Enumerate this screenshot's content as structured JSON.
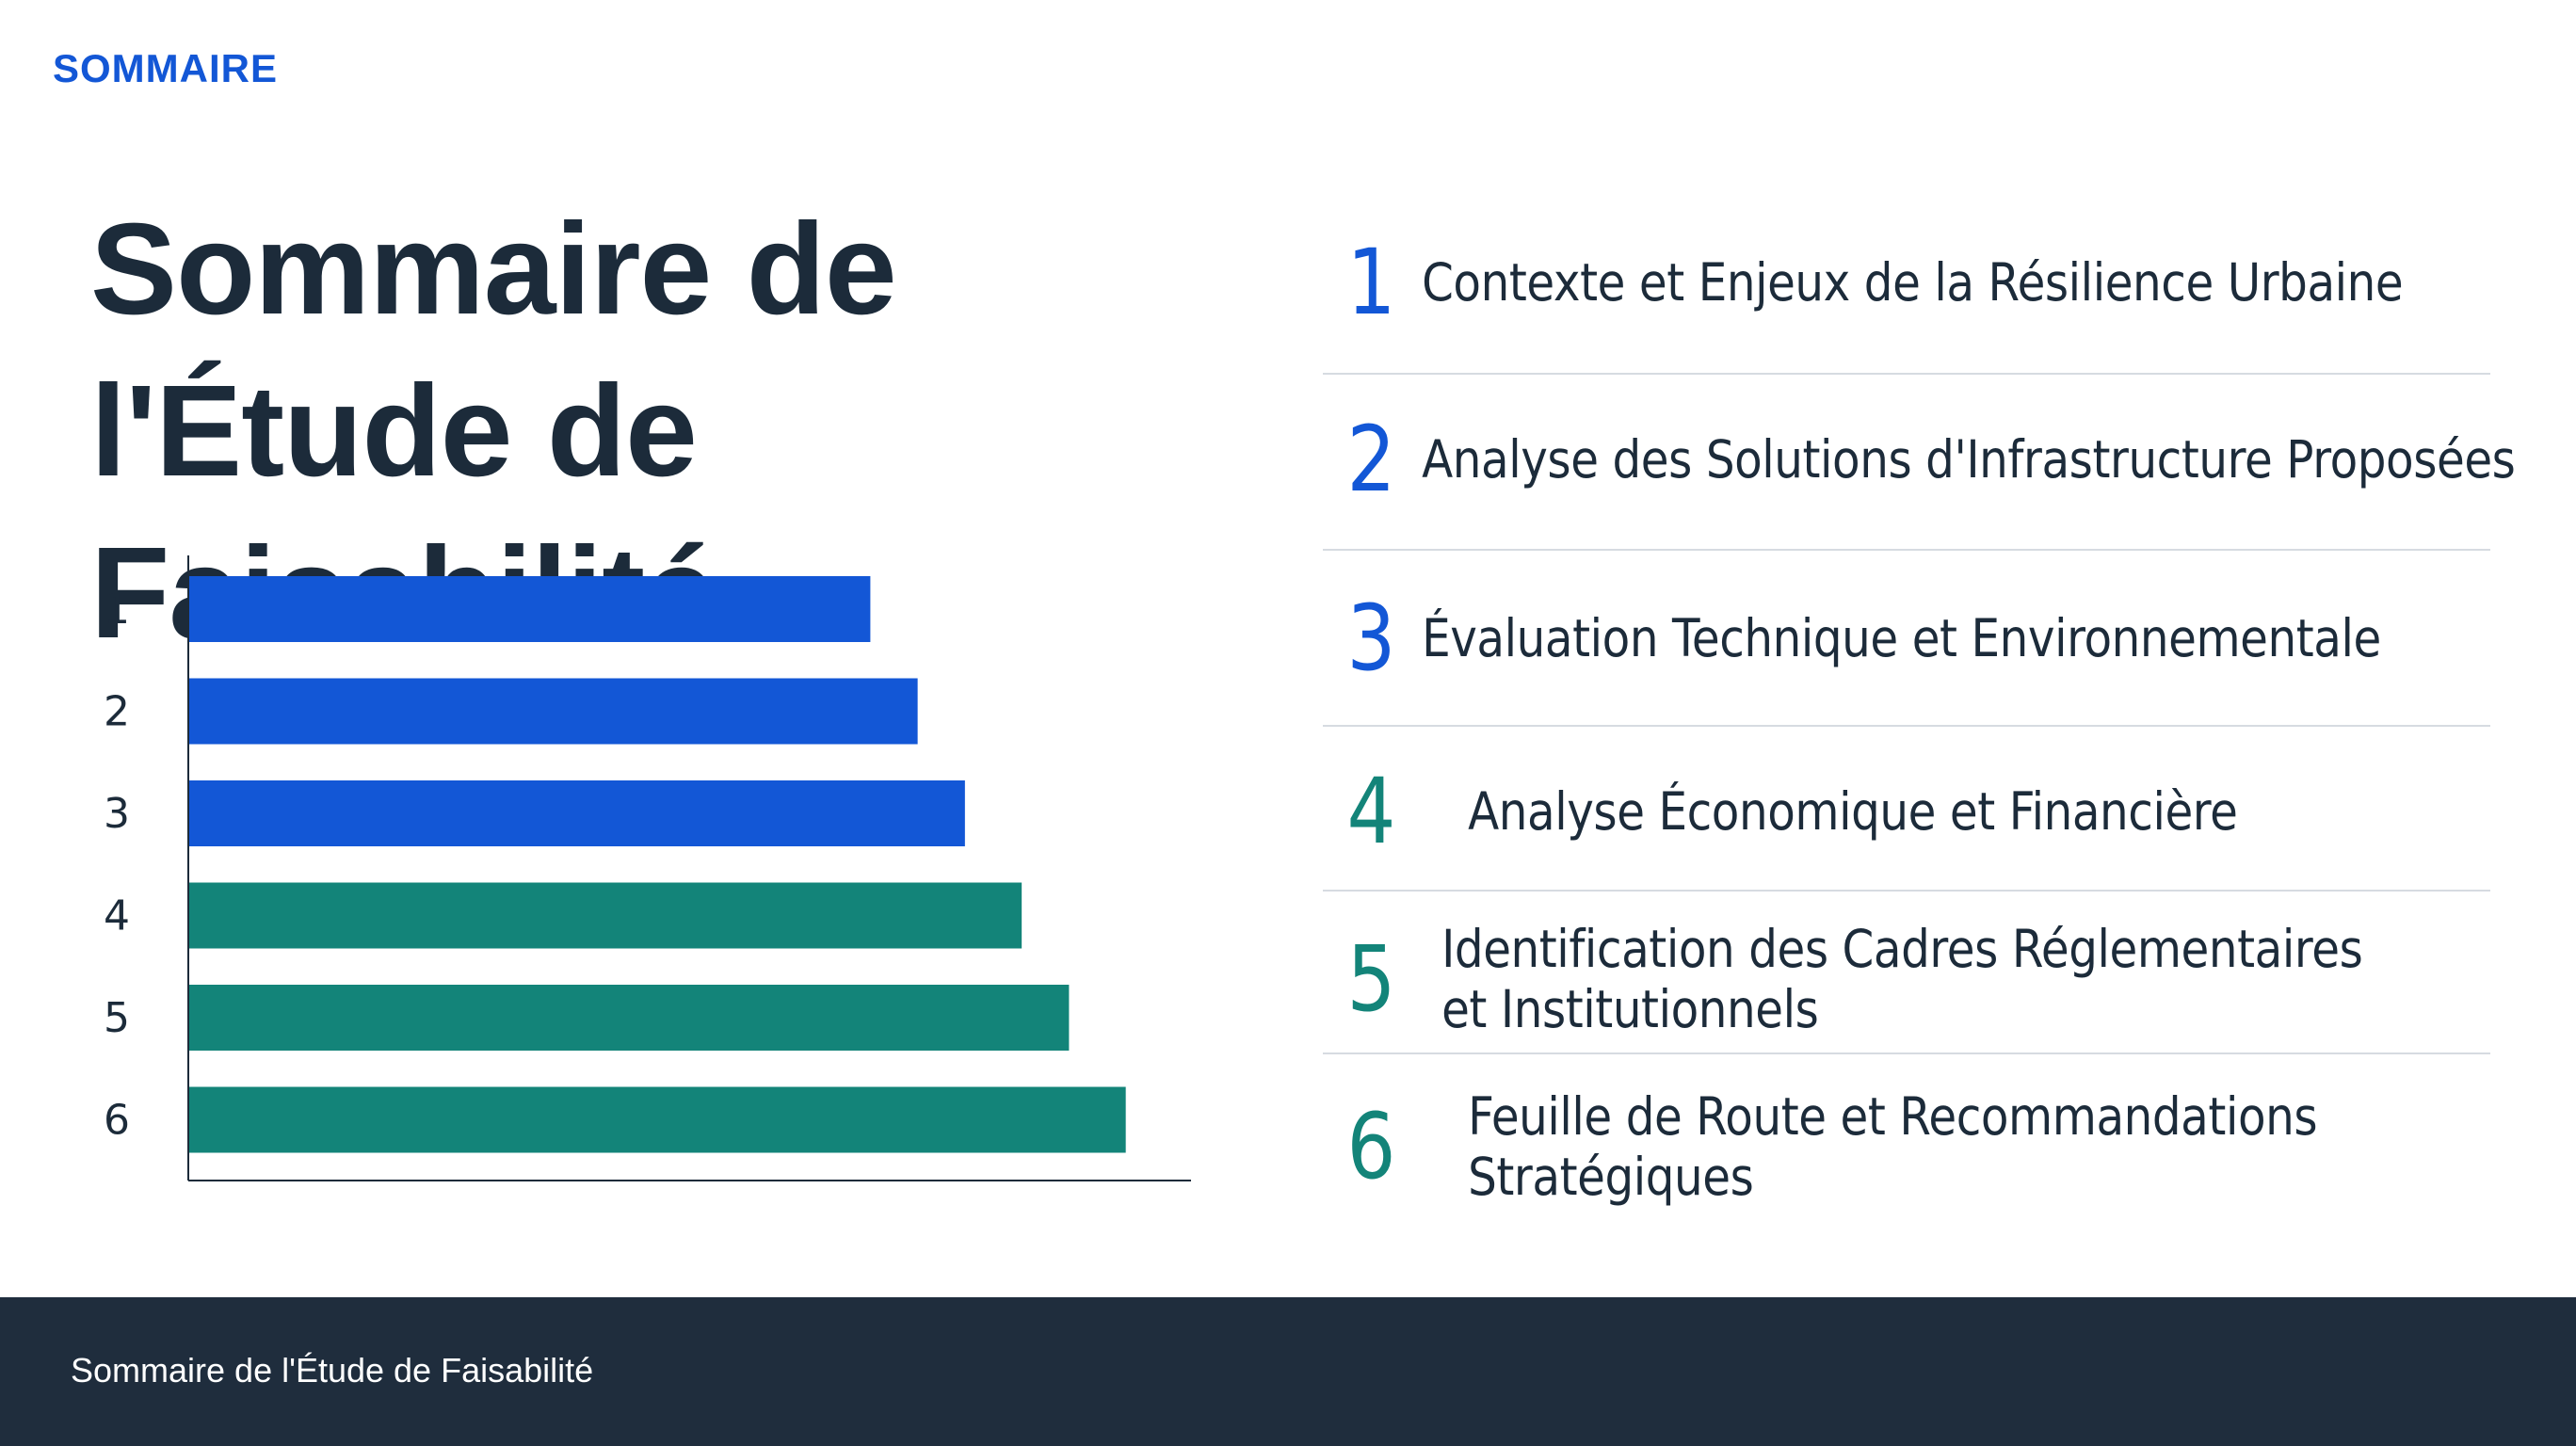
{
  "kicker": "SOMMAIRE",
  "title_line1": "Sommaire de",
  "title_line2": "l'Étude de Faisabilité",
  "colors": {
    "blue": "#1357d6",
    "teal": "#138479",
    "dark": "#1c2b3a",
    "footer_bg": "#1f2d3d"
  },
  "chart_data": {
    "type": "bar",
    "orientation": "horizontal",
    "categories": [
      "1",
      "2",
      "3",
      "4",
      "5",
      "6"
    ],
    "values": [
      72,
      77,
      82,
      88,
      93,
      99
    ],
    "colors": [
      "#1357d6",
      "#1357d6",
      "#1357d6",
      "#138479",
      "#138479",
      "#138479"
    ],
    "xlim": [
      0,
      106
    ],
    "grid": false
  },
  "toc": [
    {
      "number": "1",
      "label": "Contexte et Enjeux de la Résilience Urbaine",
      "color": "#1357d6"
    },
    {
      "number": "2",
      "label": "Analyse des Solutions d'Infrastructure Proposées",
      "color": "#1357d6"
    },
    {
      "number": "3",
      "label": "Évaluation Technique et Environnementale",
      "color": "#1357d6"
    },
    {
      "number": "4",
      "label": "Analyse Économique et Financière",
      "color": "#138479"
    },
    {
      "number": "5",
      "label": "Identification des Cadres Réglementaires\net Institutionnels",
      "color": "#138479"
    },
    {
      "number": "6",
      "label": "Feuille de Route et Recommandations\nStratégiques",
      "color": "#138479"
    }
  ],
  "footer": {
    "text": "Sommaire de l'Étude de Faisabilité"
  }
}
